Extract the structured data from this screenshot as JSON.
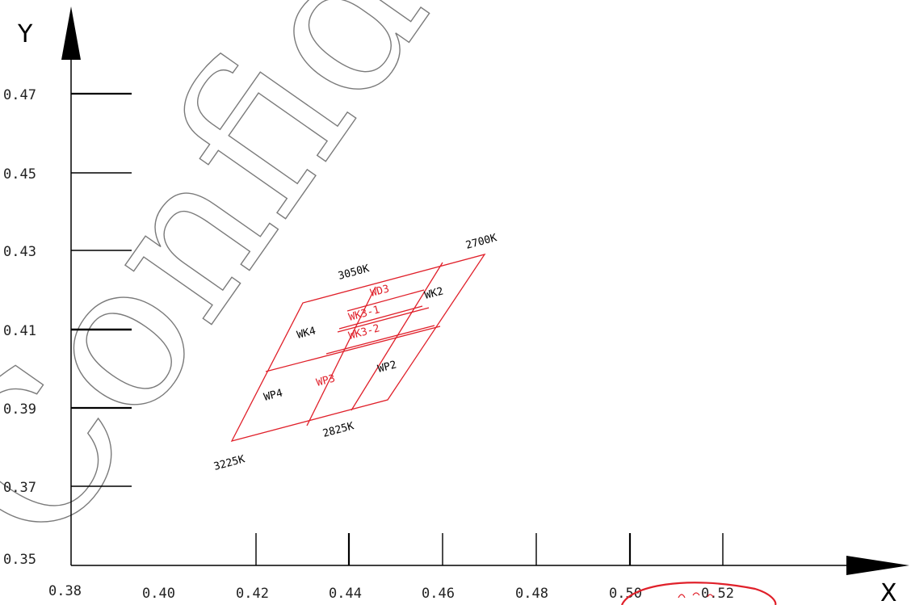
{
  "axes": {
    "x_letter": "X",
    "y_letter": "Y",
    "x_ticks": [
      "0.38",
      "0.40",
      "0.42",
      "0.44",
      "0.46",
      "0.48",
      "0.50",
      "0.52"
    ],
    "y_ticks": [
      "0.47",
      "0.45",
      "0.43",
      "0.41",
      "0.39",
      "0.37",
      "0.35"
    ]
  },
  "watermark": "Confidential",
  "regions": [
    {
      "name": "WP4",
      "color": "#000000"
    },
    {
      "name": "WP3",
      "color": "#e0202a"
    },
    {
      "name": "WP2",
      "color": "#000000"
    },
    {
      "name": "WK4",
      "color": "#000000"
    },
    {
      "name": "WK3-1",
      "color": "#e0202a"
    },
    {
      "name": "WK3-2",
      "color": "#e0202a"
    },
    {
      "name": "WD3",
      "color": "#e0202a"
    },
    {
      "name": "WK2",
      "color": "#000000"
    }
  ],
  "cct_labels": [
    "3225K",
    "2825K",
    "3050K",
    "2700K"
  ],
  "colors": {
    "grid_red": "#e0202a",
    "axis": "#000000"
  }
}
